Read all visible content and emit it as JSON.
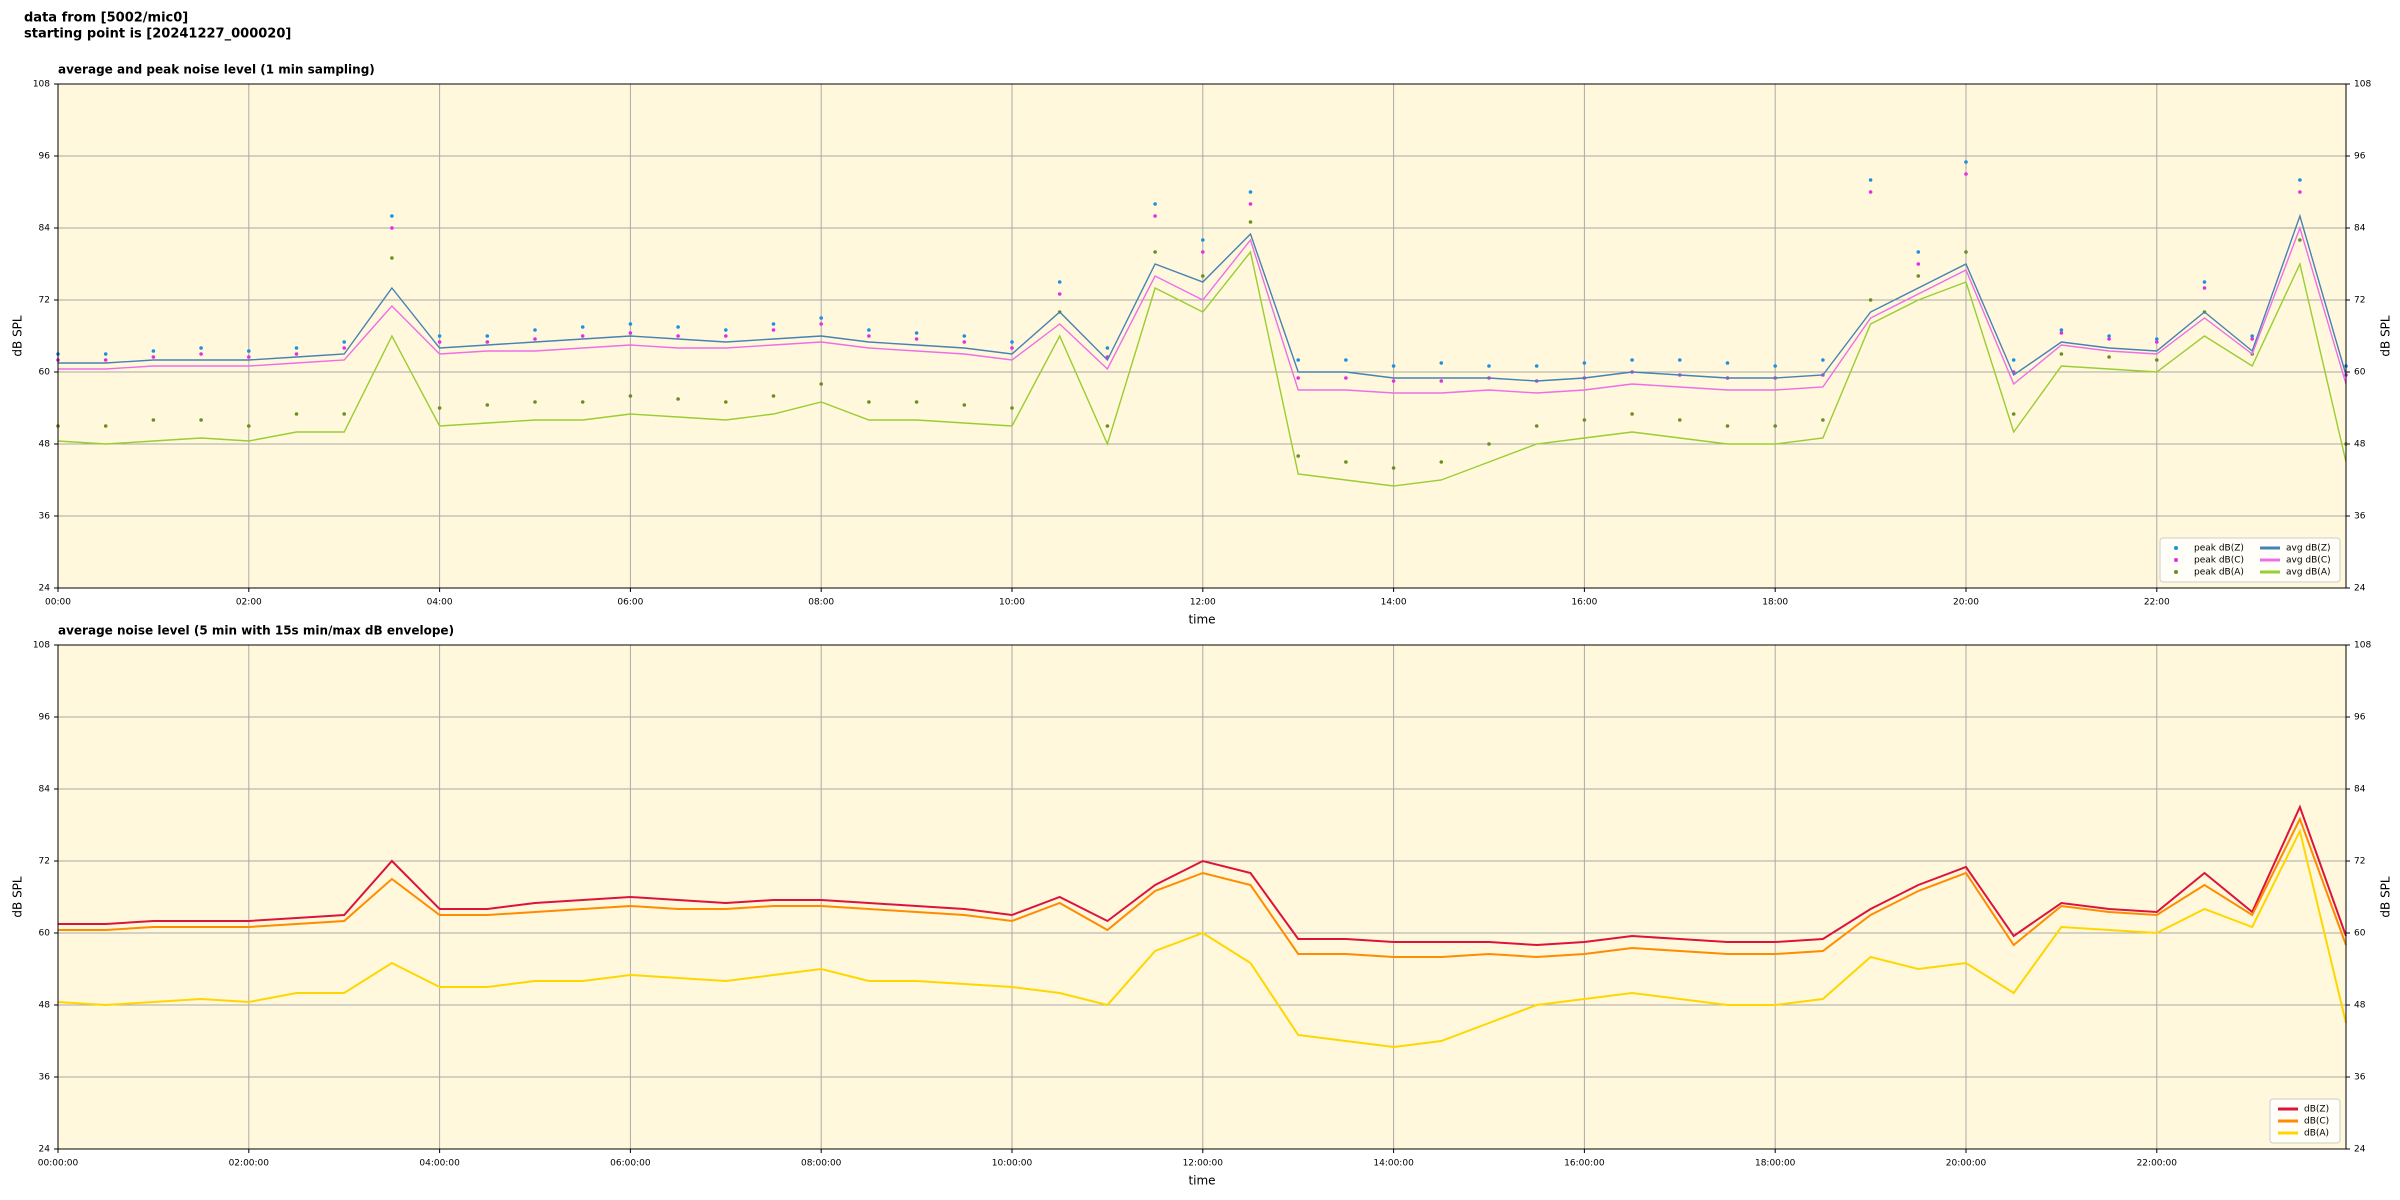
{
  "header": [
    "data from [5002/mic0]",
    "starting point is [20241227_000020]"
  ],
  "chart_data": [
    {
      "type": "line",
      "title": "average and peak noise level (1 min sampling)",
      "xlabel": "time",
      "ylabel": "dB SPL",
      "x": [
        "00:00",
        "00:30",
        "01:00",
        "01:30",
        "02:00",
        "02:30",
        "03:00",
        "03:30",
        "04:00",
        "04:30",
        "05:00",
        "05:30",
        "06:00",
        "06:30",
        "07:00",
        "07:30",
        "08:00",
        "08:30",
        "09:00",
        "09:30",
        "10:00",
        "10:30",
        "11:00",
        "11:30",
        "12:00",
        "12:30",
        "13:00",
        "13:30",
        "14:00",
        "14:30",
        "15:00",
        "15:30",
        "16:00",
        "16:30",
        "17:00",
        "17:30",
        "18:00",
        "18:30",
        "19:00",
        "19:30",
        "20:00",
        "20:30",
        "21:00",
        "21:30",
        "22:00",
        "22:30",
        "23:00",
        "23:30",
        "23:59"
      ],
      "xlim": [
        "00:00",
        "23:59"
      ],
      "xticks": [
        "00:00",
        "02:00",
        "04:00",
        "06:00",
        "08:00",
        "10:00",
        "12:00",
        "14:00",
        "16:00",
        "18:00",
        "20:00",
        "22:00"
      ],
      "ylim": [
        24,
        108
      ],
      "yticks": [
        24,
        36,
        48,
        60,
        72,
        84,
        96,
        108
      ],
      "grid": true,
      "legend": "lower right",
      "background": "#fff8dc",
      "series": [
        {
          "name": "peak dB(Z)",
          "style": "points",
          "color": "#1f8fe0",
          "values": [
            63,
            63,
            63.5,
            64,
            63.5,
            64,
            65,
            86,
            66,
            66,
            67,
            67.5,
            68,
            67.5,
            67,
            68,
            69,
            67,
            66.5,
            66,
            65,
            75,
            64,
            88,
            82,
            90,
            62,
            62,
            61,
            61.5,
            61,
            61,
            61.5,
            62,
            62,
            61.5,
            61,
            62,
            92,
            80,
            95,
            62,
            67,
            66,
            65.5,
            75,
            66,
            92,
            61
          ]
        },
        {
          "name": "peak dB(C)",
          "style": "points",
          "color": "#e030e0",
          "values": [
            62,
            62,
            62.5,
            63,
            62.5,
            63,
            64,
            84,
            65,
            65,
            65.5,
            66,
            66.5,
            66,
            66,
            67,
            68,
            66,
            65.5,
            65,
            64,
            73,
            62.5,
            86,
            80,
            88,
            59,
            59,
            58.5,
            58.5,
            59,
            58.5,
            59,
            60,
            59.5,
            59,
            59,
            59.5,
            90,
            78,
            93,
            60,
            66.5,
            65.5,
            65,
            74,
            65.5,
            90,
            59.5
          ]
        },
        {
          "name": "peak dB(A)",
          "style": "points",
          "color": "#6b8e23",
          "values": [
            51,
            51,
            52,
            52,
            51,
            53,
            53,
            79,
            54,
            54.5,
            55,
            55,
            56,
            55.5,
            55,
            56,
            58,
            55,
            55,
            54.5,
            54,
            70,
            51,
            80,
            76,
            85,
            46,
            45,
            44,
            45,
            48,
            51,
            52,
            53,
            52,
            51,
            51,
            52,
            72,
            76,
            80,
            53,
            63,
            62.5,
            62,
            70,
            63,
            82,
            48
          ]
        },
        {
          "name": "avg dB(Z)",
          "style": "line",
          "color": "#4682b4",
          "values": [
            61.5,
            61.5,
            62,
            62,
            62,
            62.5,
            63,
            74,
            64,
            64.5,
            65,
            65.5,
            66,
            65.5,
            65,
            65.5,
            66,
            65,
            64.5,
            64,
            63,
            70,
            62,
            78,
            75,
            83,
            60,
            60,
            59,
            59,
            59,
            58.5,
            59,
            60,
            59.5,
            59,
            59,
            59.5,
            70,
            74,
            78,
            59.5,
            65,
            64,
            63.5,
            70,
            63.5,
            86,
            59.5
          ]
        },
        {
          "name": "avg dB(C)",
          "style": "line",
          "color": "#ee6ee6",
          "values": [
            60.5,
            60.5,
            61,
            61,
            61,
            61.5,
            62,
            71,
            63,
            63.5,
            63.5,
            64,
            64.5,
            64,
            64,
            64.5,
            65,
            64,
            63.5,
            63,
            62,
            68,
            60.5,
            76,
            72,
            82,
            57,
            57,
            56.5,
            56.5,
            57,
            56.5,
            57,
            58,
            57.5,
            57,
            57,
            57.5,
            69,
            73,
            77,
            58,
            64.5,
            63.5,
            63,
            69,
            63,
            84,
            58
          ]
        },
        {
          "name": "avg dB(A)",
          "style": "line",
          "color": "#9acd32",
          "values": [
            48.5,
            48,
            48.5,
            49,
            48.5,
            50,
            50,
            66,
            51,
            51.5,
            52,
            52,
            53,
            52.5,
            52,
            53,
            55,
            52,
            52,
            51.5,
            51,
            66,
            48,
            74,
            70,
            80,
            43,
            42,
            41,
            42,
            45,
            48,
            49,
            50,
            49,
            48,
            48,
            49,
            68,
            72,
            75,
            50,
            61,
            60.5,
            60,
            66,
            61,
            78,
            45
          ]
        }
      ]
    },
    {
      "type": "line",
      "title": "average noise level (5 min with 15s min/max dB envelope)",
      "xlabel": "time",
      "ylabel": "dB SPL",
      "x": [
        "00:00:00",
        "00:30:00",
        "01:00:00",
        "01:30:00",
        "02:00:00",
        "02:30:00",
        "03:00:00",
        "03:30:00",
        "04:00:00",
        "04:30:00",
        "05:00:00",
        "05:30:00",
        "06:00:00",
        "06:30:00",
        "07:00:00",
        "07:30:00",
        "08:00:00",
        "08:30:00",
        "09:00:00",
        "09:30:00",
        "10:00:00",
        "10:30:00",
        "11:00:00",
        "11:30:00",
        "12:00:00",
        "12:30:00",
        "13:00:00",
        "13:30:00",
        "14:00:00",
        "14:30:00",
        "15:00:00",
        "15:30:00",
        "16:00:00",
        "16:30:00",
        "17:00:00",
        "17:30:00",
        "18:00:00",
        "18:30:00",
        "19:00:00",
        "19:30:00",
        "20:00:00",
        "20:30:00",
        "21:00:00",
        "21:30:00",
        "22:00:00",
        "22:30:00",
        "23:00:00",
        "23:30:00",
        "23:59:00"
      ],
      "xlim": [
        "00:00:00",
        "23:59:00"
      ],
      "xticks": [
        "00:00:00",
        "02:00:00",
        "04:00:00",
        "06:00:00",
        "08:00:00",
        "10:00:00",
        "12:00:00",
        "14:00:00",
        "16:00:00",
        "18:00:00",
        "20:00:00",
        "22:00:00"
      ],
      "ylim": [
        24,
        108
      ],
      "yticks": [
        24,
        36,
        48,
        60,
        72,
        84,
        96,
        108
      ],
      "grid": true,
      "legend": "lower right",
      "background": "#fff8dc",
      "series": [
        {
          "name": "dB(Z)",
          "style": "line",
          "color": "#dc143c",
          "values": [
            61.5,
            61.5,
            62,
            62,
            62,
            62.5,
            63,
            72,
            64,
            64,
            65,
            65.5,
            66,
            65.5,
            65,
            65.5,
            65.5,
            65,
            64.5,
            64,
            63,
            66,
            62,
            68,
            72,
            70,
            59,
            59,
            58.5,
            58.5,
            58.5,
            58,
            58.5,
            59.5,
            59,
            58.5,
            58.5,
            59,
            64,
            68,
            71,
            59.5,
            65,
            64,
            63.5,
            70,
            63.5,
            81,
            59.5
          ]
        },
        {
          "name": "dB(C)",
          "style": "line",
          "color": "#ff8c00",
          "values": [
            60.5,
            60.5,
            61,
            61,
            61,
            61.5,
            62,
            69,
            63,
            63,
            63.5,
            64,
            64.5,
            64,
            64,
            64.5,
            64.5,
            64,
            63.5,
            63,
            62,
            65,
            60.5,
            67,
            70,
            68,
            56.5,
            56.5,
            56,
            56,
            56.5,
            56,
            56.5,
            57.5,
            57,
            56.5,
            56.5,
            57,
            63,
            67,
            70,
            58,
            64.5,
            63.5,
            63,
            68,
            63,
            79,
            58
          ]
        },
        {
          "name": "dB(A)",
          "style": "line",
          "color": "#ffd700",
          "values": [
            48.5,
            48,
            48.5,
            49,
            48.5,
            50,
            50,
            55,
            51,
            51,
            52,
            52,
            53,
            52.5,
            52,
            53,
            54,
            52,
            52,
            51.5,
            51,
            50,
            48,
            57,
            60,
            55,
            43,
            42,
            41,
            42,
            45,
            48,
            49,
            50,
            49,
            48,
            48,
            49,
            56,
            54,
            55,
            50,
            61,
            60.5,
            60,
            64,
            61,
            77,
            45
          ]
        }
      ]
    }
  ]
}
